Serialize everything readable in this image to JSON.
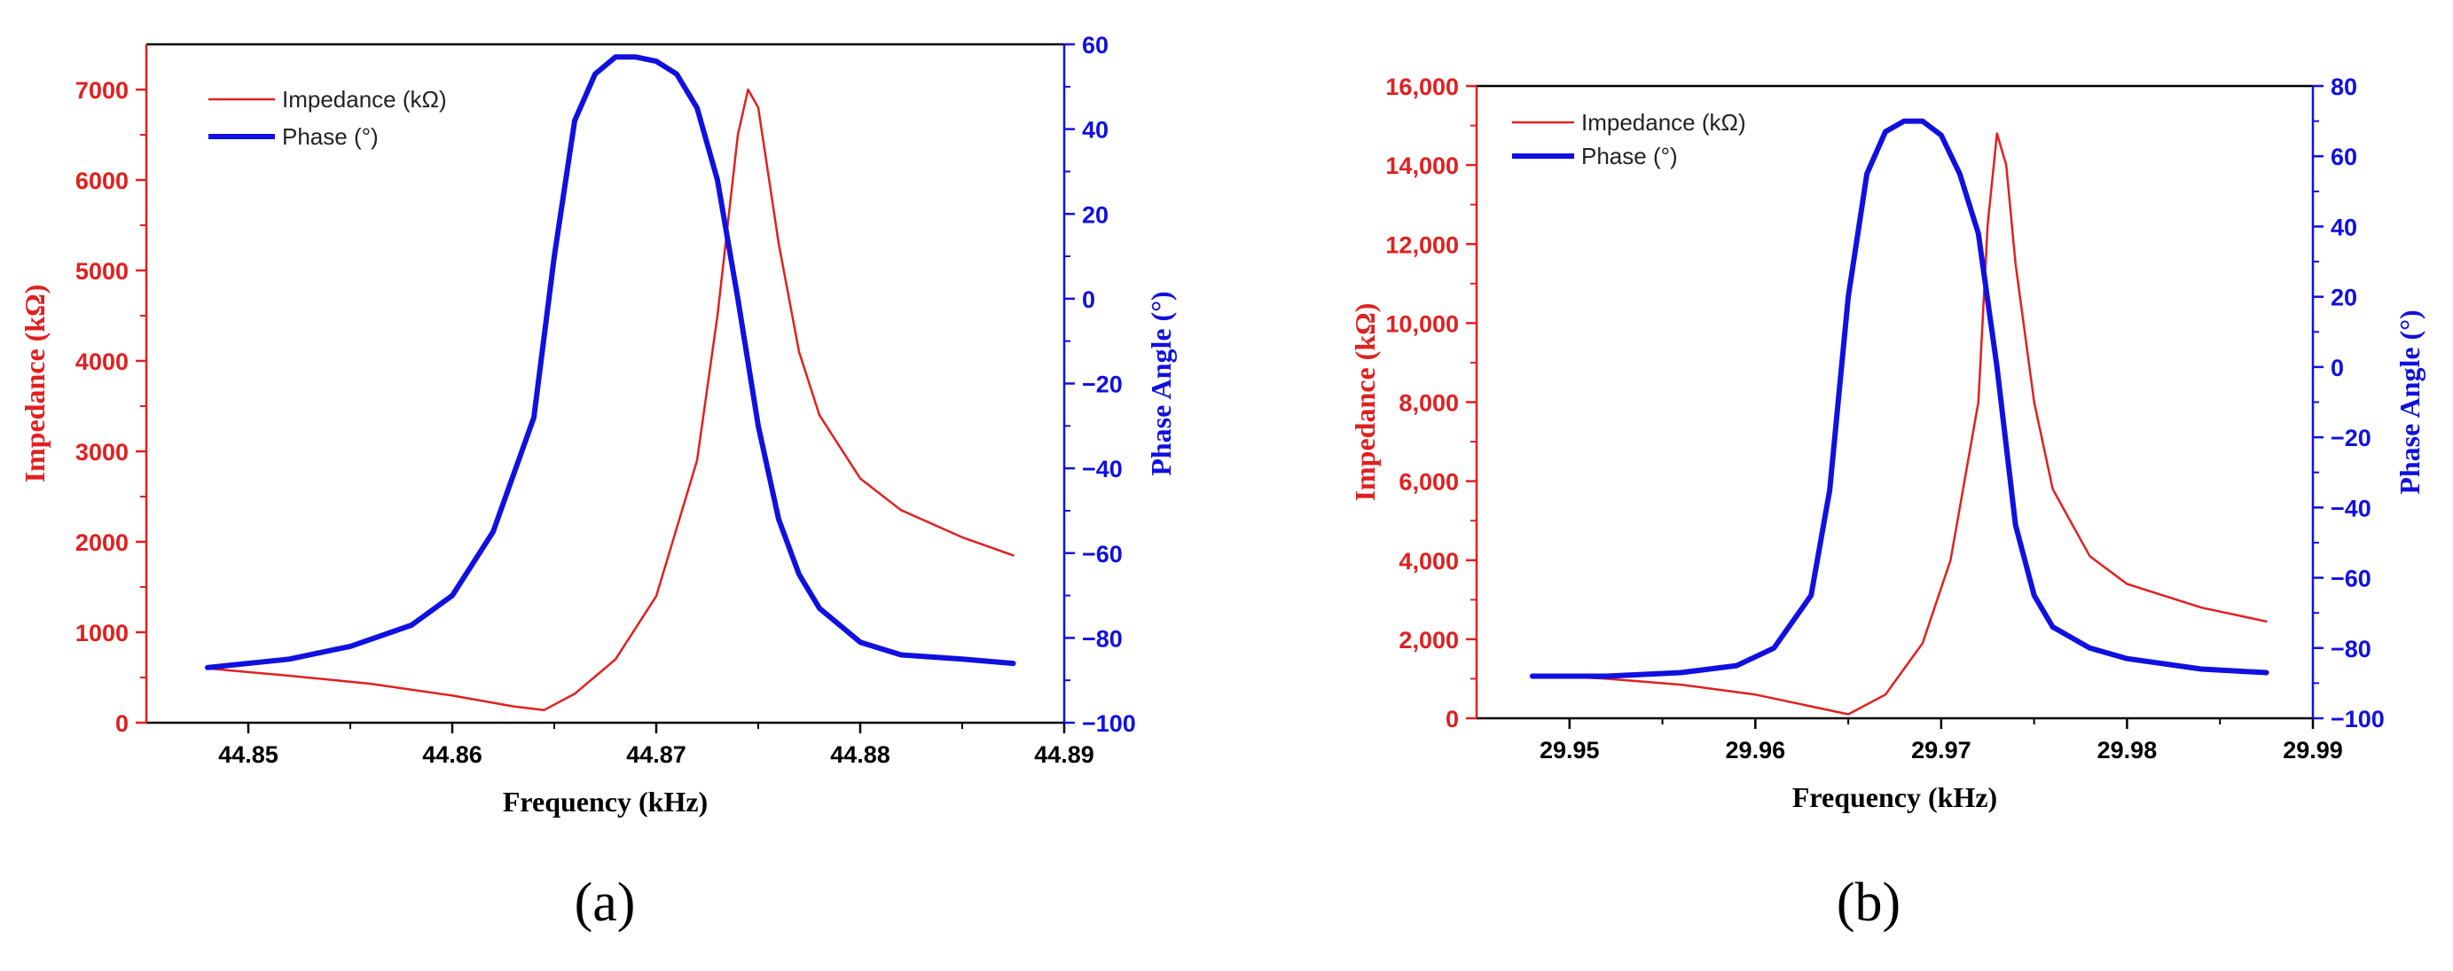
{
  "colors": {
    "impedance": "#e02020",
    "phase": "#1010e0",
    "axis": "#000000"
  },
  "chart_data": [
    {
      "type": "line",
      "panel_label": "(a)",
      "xlabel": "Frequency (kHz)",
      "ylabel_left": "Impedance (kΩ)",
      "ylabel_right": "Phase Angle (°)",
      "xlim": [
        44.845,
        44.89
      ],
      "xticks": [
        44.85,
        44.86,
        44.87,
        44.88,
        44.89
      ],
      "xtick_labels": [
        "44.85",
        "44.86",
        "44.87",
        "44.88",
        "44.89"
      ],
      "ylim_left": [
        0,
        7500
      ],
      "yticks_left": [
        0,
        1000,
        2000,
        3000,
        4000,
        5000,
        6000,
        7000
      ],
      "ytick_labels_left": [
        "0",
        "1000",
        "2000",
        "3000",
        "4000",
        "5000",
        "6000",
        "7000"
      ],
      "ylim_right": [
        -100,
        60
      ],
      "yticks_right": [
        -100,
        -80,
        -60,
        -40,
        -20,
        0,
        20,
        40,
        60
      ],
      "ytick_labels_right": [
        "−100",
        "−80",
        "−60",
        "−40",
        "−20",
        "0",
        "20",
        "40",
        "60"
      ],
      "legend_position": "top-left",
      "series": [
        {
          "name": "Impedance (kΩ)",
          "axis": "left",
          "color_key": "impedance",
          "x": [
            44.848,
            44.852,
            44.856,
            44.86,
            44.863,
            44.8645,
            44.866,
            44.868,
            44.87,
            44.872,
            44.873,
            44.874,
            44.8745,
            44.875,
            44.876,
            44.877,
            44.878,
            44.88,
            44.882,
            44.885,
            44.8875
          ],
          "values": [
            600,
            520,
            430,
            300,
            180,
            140,
            320,
            700,
            1400,
            2900,
            4500,
            6500,
            7000,
            6800,
            5300,
            4100,
            3400,
            2700,
            2350,
            2050,
            1850
          ]
        },
        {
          "name": "Phase (°)",
          "axis": "right",
          "color_key": "phase",
          "x": [
            44.848,
            44.852,
            44.855,
            44.858,
            44.86,
            44.862,
            44.864,
            44.865,
            44.866,
            44.867,
            44.868,
            44.869,
            44.87,
            44.871,
            44.872,
            44.873,
            44.874,
            44.875,
            44.876,
            44.877,
            44.878,
            44.88,
            44.882,
            44.885,
            44.8875
          ],
          "values": [
            -87,
            -85,
            -82,
            -77,
            -70,
            -55,
            -28,
            10,
            42,
            53,
            57,
            57,
            56,
            53,
            45,
            28,
            0,
            -30,
            -52,
            -65,
            -73,
            -81,
            -84,
            -85,
            -86
          ]
        }
      ]
    },
    {
      "type": "line",
      "panel_label": "(b)",
      "xlabel": "Frequency (kHz)",
      "ylabel_left": "Impedance (kΩ)",
      "ylabel_right": "Phase Angle (°)",
      "xlim": [
        29.945,
        29.99
      ],
      "xticks": [
        29.95,
        29.96,
        29.97,
        29.98,
        29.99
      ],
      "xtick_labels": [
        "29.95",
        "29.96",
        "29.97",
        "29.98",
        "29.99"
      ],
      "ylim_left": [
        0,
        16000
      ],
      "yticks_left": [
        0,
        2000,
        4000,
        6000,
        8000,
        10000,
        12000,
        14000,
        16000
      ],
      "ytick_labels_left": [
        "0",
        "2,000",
        "4,000",
        "6,000",
        "8,000",
        "10,000",
        "12,000",
        "14,000",
        "16,000"
      ],
      "ylim_right": [
        -100,
        80
      ],
      "yticks_right": [
        -100,
        -80,
        -60,
        -40,
        -20,
        0,
        20,
        40,
        60,
        80
      ],
      "ytick_labels_right": [
        "−100",
        "−80",
        "−60",
        "−40",
        "−20",
        "0",
        "20",
        "40",
        "60",
        "80"
      ],
      "legend_position": "top-left",
      "series": [
        {
          "name": "Impedance (kΩ)",
          "axis": "left",
          "color_key": "impedance",
          "x": [
            29.948,
            29.952,
            29.956,
            29.96,
            29.963,
            29.965,
            29.967,
            29.969,
            29.9705,
            29.972,
            29.9725,
            29.973,
            29.9735,
            29.974,
            29.975,
            29.976,
            29.978,
            29.98,
            29.984,
            29.9875
          ],
          "values": [
            1100,
            1000,
            850,
            600,
            300,
            100,
            600,
            1900,
            4000,
            8000,
            12500,
            14800,
            14000,
            11500,
            8000,
            5800,
            4100,
            3400,
            2800,
            2450
          ]
        },
        {
          "name": "Phase (°)",
          "axis": "right",
          "color_key": "phase",
          "x": [
            29.948,
            29.952,
            29.956,
            29.959,
            29.961,
            29.963,
            29.964,
            29.965,
            29.966,
            29.967,
            29.968,
            29.969,
            29.97,
            29.971,
            29.972,
            29.973,
            29.974,
            29.975,
            29.976,
            29.978,
            29.98,
            29.984,
            29.9875
          ],
          "values": [
            -88,
            -88,
            -87,
            -85,
            -80,
            -65,
            -35,
            20,
            55,
            67,
            70,
            70,
            66,
            55,
            38,
            0,
            -45,
            -65,
            -74,
            -80,
            -83,
            -86,
            -87
          ]
        }
      ]
    }
  ]
}
